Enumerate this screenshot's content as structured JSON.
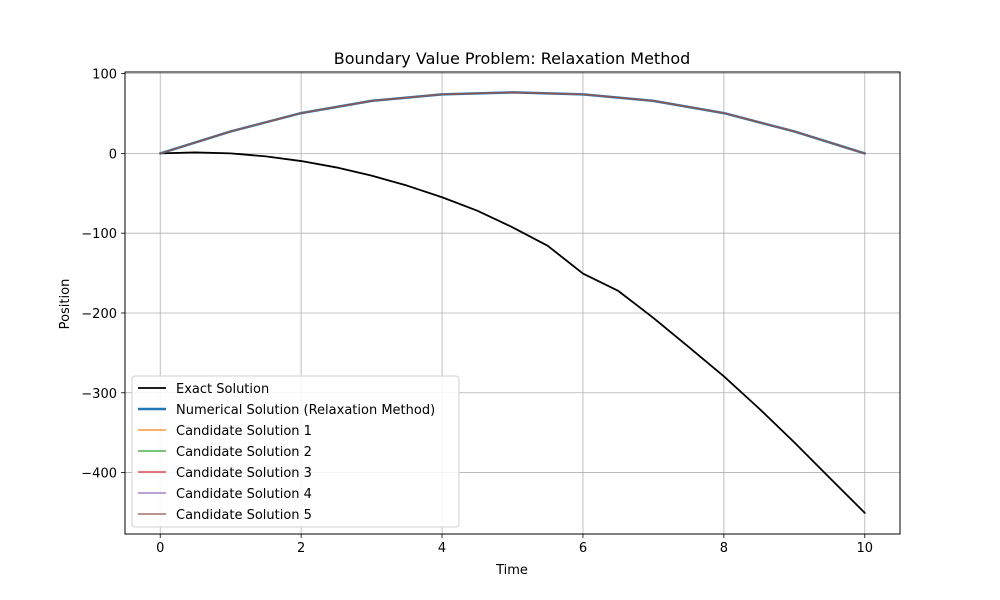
{
  "chart_data": {
    "type": "line",
    "title": "Boundary Value Problem: Relaxation Method",
    "xlabel": "Time",
    "ylabel": "Position",
    "xlim": [
      -0.5,
      10.5
    ],
    "ylim": [
      -477,
      102
    ],
    "xticks": [
      0,
      2,
      4,
      6,
      8,
      10
    ],
    "yticks": [
      100,
      0,
      -100,
      -200,
      -300,
      -400
    ],
    "ytick_labels": [
      "100",
      "0",
      "−100",
      "−200",
      "−300",
      "−400"
    ],
    "grid": true,
    "legend_position": "lower-left",
    "series": [
      {
        "name": "Exact Solution",
        "color": "#000000",
        "linewidth": 1.8,
        "x": [
          0,
          0.5,
          1,
          1.5,
          2,
          2.5,
          3,
          3.5,
          4,
          4.5,
          5,
          5.5,
          6,
          6.5,
          7,
          7.5,
          8,
          8.5,
          9,
          9.5,
          10
        ],
        "y": [
          0,
          1.2,
          0,
          -3.7,
          -9.6,
          -17.6,
          -27.9,
          -40.3,
          -55.0,
          -71.8,
          -92.6,
          -115.8,
          -150.6,
          -172.3,
          -206.2,
          -242.6,
          -279.4,
          -319.7,
          -362.2,
          -406.5,
          -450.5
        ]
      },
      {
        "name": "Numerical Solution (Relaxation Method)",
        "color": "#1f77b4",
        "linewidth": 2.5,
        "x": [
          0,
          1,
          2,
          3,
          4,
          5,
          6,
          7,
          8,
          9,
          10
        ],
        "y": [
          0,
          27.5,
          50.5,
          65.8,
          74.0,
          76.5,
          74.0,
          65.8,
          50.5,
          27.5,
          0
        ]
      },
      {
        "name": "Candidate Solution 1",
        "color": "#ff7f0e",
        "linewidth": 1.2,
        "x": [
          0,
          1,
          2,
          3,
          4,
          5,
          6,
          7,
          8,
          9,
          10
        ],
        "y": [
          0,
          27.5,
          50.5,
          65.8,
          74.0,
          76.5,
          74.0,
          65.8,
          50.5,
          27.5,
          0
        ]
      },
      {
        "name": "Candidate Solution 2",
        "color": "#2ca02c",
        "linewidth": 1.2,
        "x": [
          0,
          1,
          2,
          3,
          4,
          5,
          6,
          7,
          8,
          9,
          10
        ],
        "y": [
          0,
          27.5,
          50.5,
          65.8,
          74.0,
          76.5,
          74.0,
          65.8,
          50.5,
          27.5,
          0
        ]
      },
      {
        "name": "Candidate Solution 3",
        "color": "#d62728",
        "linewidth": 1.2,
        "x": [
          0,
          1,
          2,
          3,
          4,
          5,
          6,
          7,
          8,
          9,
          10
        ],
        "y": [
          0,
          27.5,
          50.5,
          65.8,
          74.0,
          76.5,
          74.0,
          65.8,
          50.5,
          27.5,
          0
        ]
      },
      {
        "name": "Candidate Solution 4",
        "color": "#9467bd",
        "linewidth": 1.2,
        "x": [
          0,
          1,
          2,
          3,
          4,
          5,
          6,
          7,
          8,
          9,
          10
        ],
        "y": [
          0,
          27.5,
          50.5,
          65.8,
          74.0,
          76.5,
          74.0,
          65.8,
          50.5,
          27.5,
          0
        ]
      },
      {
        "name": "Candidate Solution 5",
        "color": "#8c564b",
        "linewidth": 1.2,
        "x": [
          0,
          1,
          2,
          3,
          4,
          5,
          6,
          7,
          8,
          9,
          10
        ],
        "y": [
          0,
          27.5,
          50.5,
          65.8,
          74.0,
          76.5,
          74.0,
          65.8,
          50.5,
          27.5,
          0
        ]
      }
    ]
  }
}
